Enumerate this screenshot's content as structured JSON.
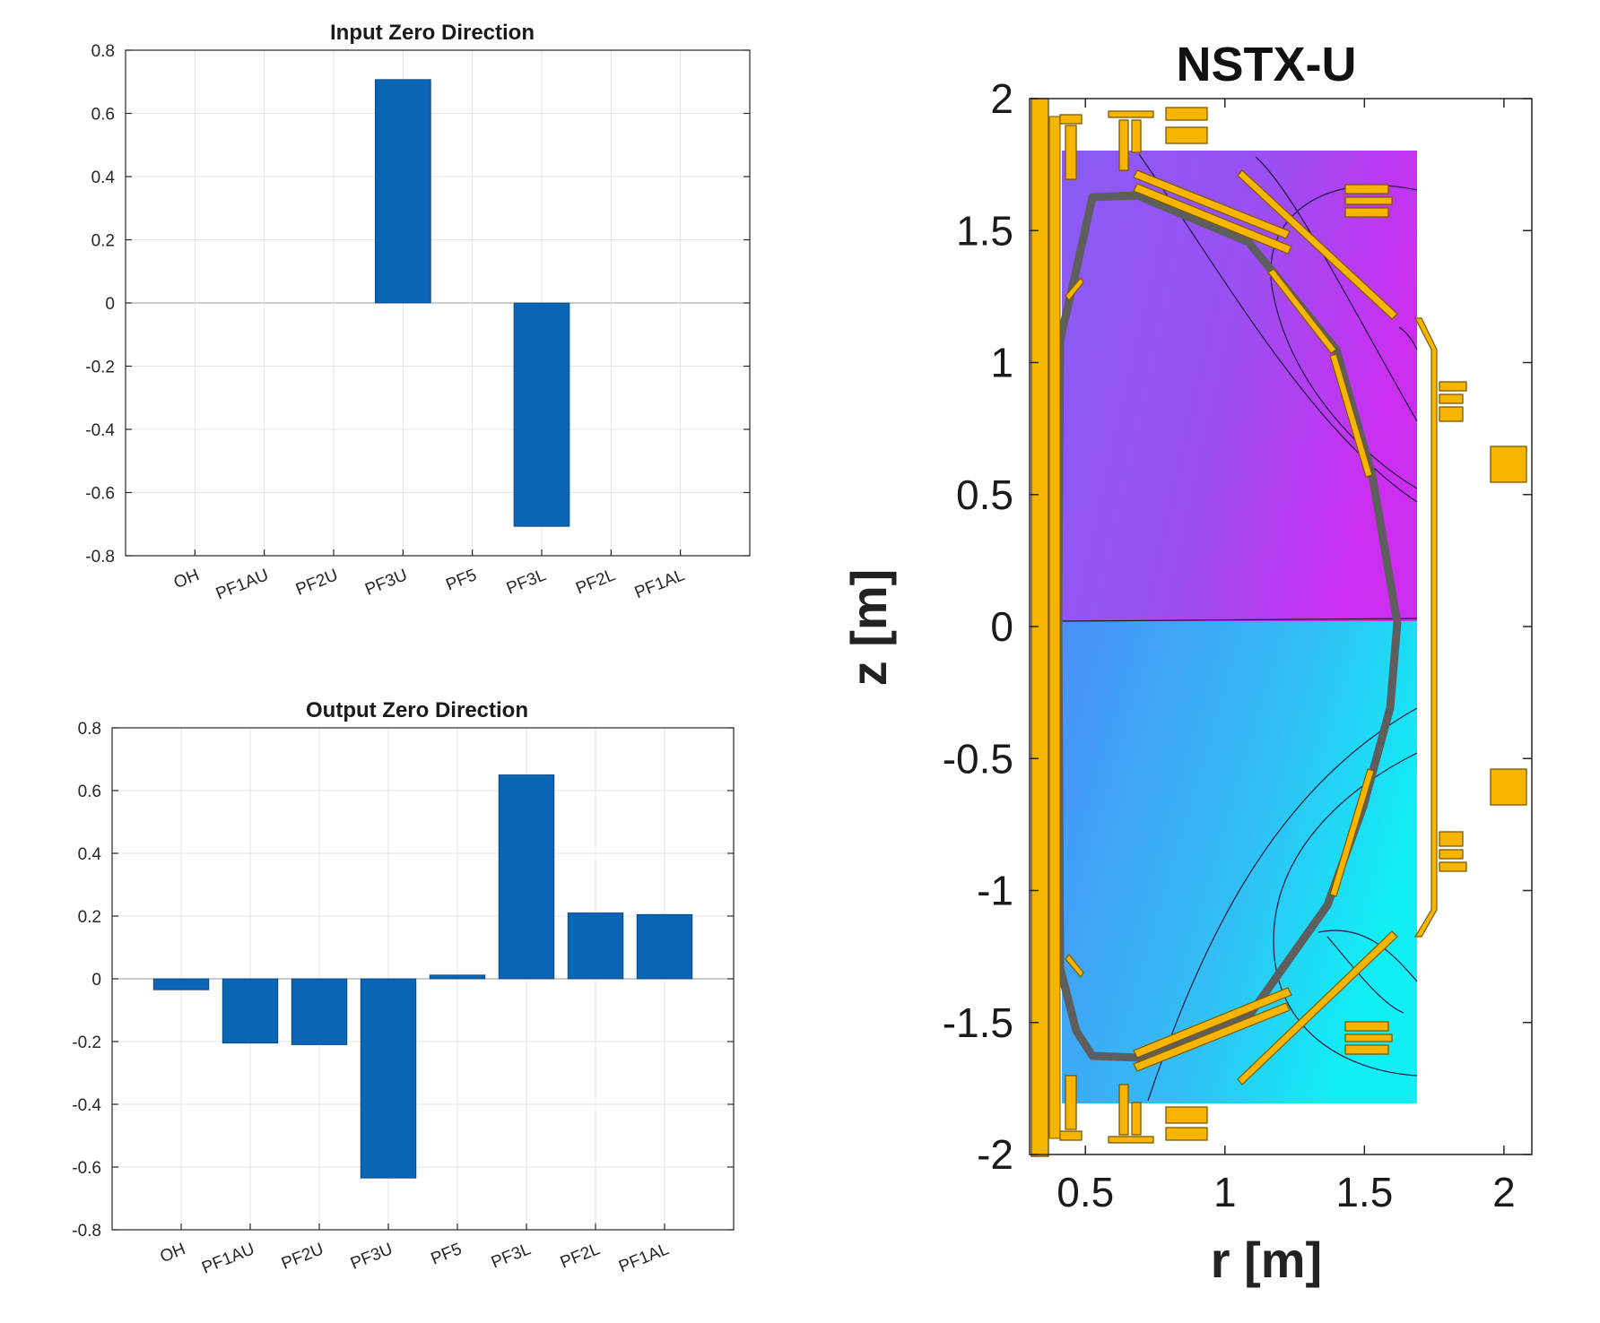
{
  "colors": {
    "bar": "#0a66b5",
    "coil": "#f7b500",
    "coil_edge": "#7a5a00",
    "wall": "#6b6b6b"
  },
  "chart_data": [
    {
      "type": "bar",
      "title": "Input Zero Direction",
      "categories": [
        "OH",
        "PF1AU",
        "PF2U",
        "PF3U",
        "PF5",
        "PF3L",
        "PF2L",
        "PF1AL"
      ],
      "values": [
        0,
        0,
        0,
        0.707,
        0,
        -0.707,
        0,
        0
      ],
      "ylim": [
        -0.8,
        0.8
      ],
      "yticks": [
        "0.8",
        "0.6",
        "0.4",
        "0.2",
        "0",
        "-0.2",
        "-0.4",
        "-0.6",
        "-0.8"
      ],
      "xlabel": "",
      "ylabel": "",
      "grid": true
    },
    {
      "type": "bar",
      "title": "Output Zero Direction",
      "categories": [
        "OH",
        "PF1AU",
        "PF2U",
        "PF3U",
        "PF5",
        "PF3L",
        "PF2L",
        "PF1AL"
      ],
      "values": [
        -0.035,
        -0.205,
        -0.21,
        -0.635,
        0.012,
        0.65,
        0.21,
        0.205
      ],
      "ylim": [
        -0.8,
        0.8
      ],
      "yticks": [
        "0.8",
        "0.6",
        "0.4",
        "0.2",
        "0",
        "-0.2",
        "-0.4",
        "-0.6",
        "-0.8"
      ],
      "xlabel": "",
      "ylabel": "",
      "grid": true
    },
    {
      "type": "heatmap",
      "title": "NSTX-U",
      "xlabel": "r [m]",
      "ylabel": "z [m]",
      "xlim": [
        0.3,
        2.1
      ],
      "ylim": [
        -2,
        2
      ],
      "xticks": [
        "0.5",
        "1",
        "1.5",
        "2"
      ],
      "yticks": [
        "2",
        "1.5",
        "1",
        "0.5",
        "0",
        "-0.5",
        "-1",
        "-1.5",
        "-2"
      ]
    }
  ]
}
